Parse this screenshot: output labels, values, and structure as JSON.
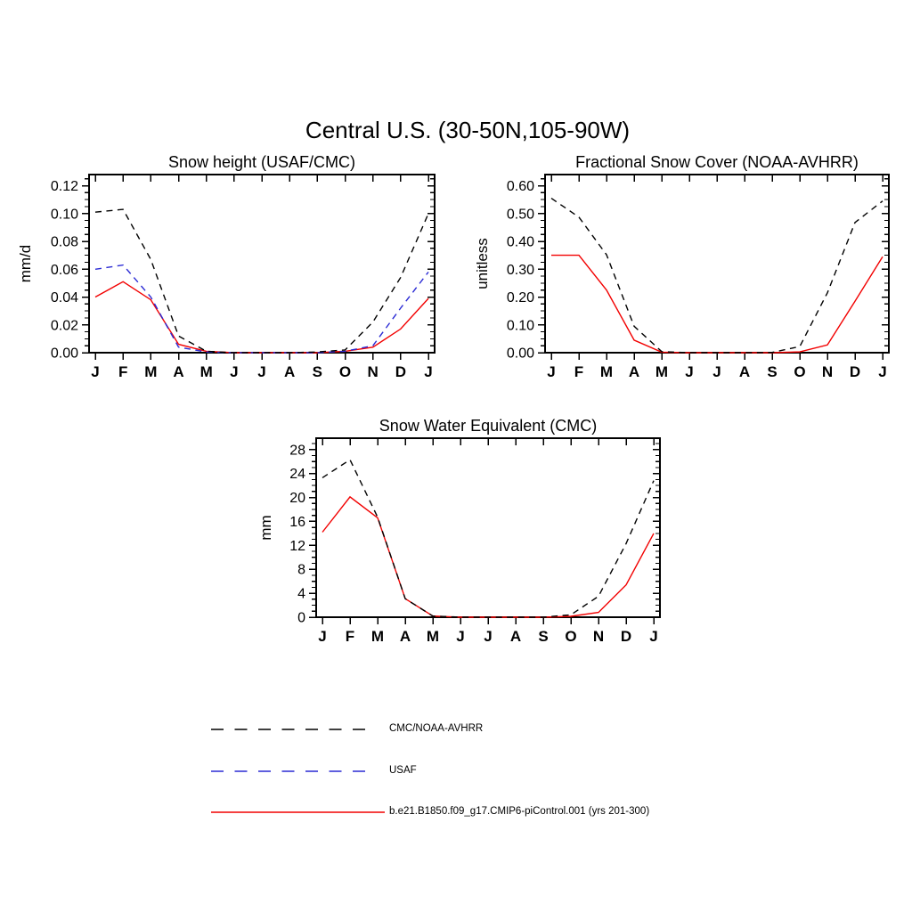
{
  "title": "Central U.S. (30-50N,105-90W)",
  "colors": {
    "obs_black": "#000000",
    "usaf_blue": "#2a2ad4",
    "model_red": "#f20000",
    "axis": "#000000"
  },
  "months": [
    "J",
    "F",
    "M",
    "A",
    "M",
    "J",
    "J",
    "A",
    "S",
    "O",
    "N",
    "D",
    "J"
  ],
  "chart_data": [
    {
      "id": "snow-height",
      "type": "line",
      "title": "Snow height (USAF/CMC)",
      "ylabel": "mm/d",
      "xlabel": "",
      "categories": [
        "J",
        "F",
        "M",
        "A",
        "M",
        "J",
        "J",
        "A",
        "S",
        "O",
        "N",
        "D",
        "J"
      ],
      "ylim": [
        0,
        0.128
      ],
      "y_ticks": [
        0.0,
        0.02,
        0.04,
        0.06,
        0.08,
        0.1,
        0.12
      ],
      "y_tick_labels": [
        "0.00",
        "0.02",
        "0.04",
        "0.06",
        "0.08",
        "0.10",
        "0.12"
      ],
      "y_minor_step": 0.005,
      "grid": false,
      "series": [
        {
          "id": "model",
          "name": "b.e21.B1850.f09_g17.CMIP6-piControl.001 (yrs 201-300)",
          "color": "#f20000",
          "line_style": "solid",
          "values": [
            0.04,
            0.051,
            0.038,
            0.006,
            0.001,
            0.0,
            0.0,
            0.0,
            0.0,
            0.001,
            0.004,
            0.017,
            0.039
          ]
        },
        {
          "id": "usaf",
          "name": "USAF",
          "color": "#2a2ad4",
          "line_style": "dashed",
          "values": [
            0.06,
            0.063,
            0.04,
            0.004,
            0.0005,
            0.0,
            0.0,
            0.0,
            0.0,
            0.001,
            0.005,
            0.032,
            0.058
          ]
        },
        {
          "id": "cmc_noaa_avhrr",
          "name": "CMC/NOAA-AVHRR",
          "color": "#000000",
          "line_style": "dashed",
          "values": [
            0.101,
            0.103,
            0.067,
            0.012,
            0.001,
            0.0,
            0.0,
            0.0,
            0.0005,
            0.002,
            0.022,
            0.054,
            0.1
          ]
        }
      ]
    },
    {
      "id": "fractional-snow-cover",
      "type": "line",
      "title": "Fractional Snow Cover (NOAA-AVHRR)",
      "ylabel": "unitless",
      "xlabel": "",
      "categories": [
        "J",
        "F",
        "M",
        "A",
        "M",
        "J",
        "J",
        "A",
        "S",
        "O",
        "N",
        "D",
        "J"
      ],
      "ylim": [
        0,
        0.64
      ],
      "y_ticks": [
        0.0,
        0.1,
        0.2,
        0.3,
        0.4,
        0.5,
        0.6
      ],
      "y_tick_labels": [
        "0.00",
        "0.10",
        "0.20",
        "0.30",
        "0.40",
        "0.50",
        "0.60"
      ],
      "y_minor_step": 0.025,
      "grid": false,
      "series": [
        {
          "id": "model",
          "name": "b.e21.B1850.f09_g17.CMIP6-piControl.001 (yrs 201-300)",
          "color": "#f20000",
          "line_style": "solid",
          "values": [
            0.35,
            0.35,
            0.225,
            0.045,
            0.002,
            0.0,
            0.0,
            0.0,
            0.0,
            0.003,
            0.028,
            0.185,
            0.345
          ]
        },
        {
          "id": "cmc_noaa_avhrr",
          "name": "CMC/NOAA-AVHRR",
          "color": "#000000",
          "line_style": "dashed",
          "values": [
            0.555,
            0.487,
            0.352,
            0.095,
            0.004,
            0.0,
            0.0,
            0.0,
            0.001,
            0.022,
            0.215,
            0.468,
            0.545
          ]
        }
      ]
    },
    {
      "id": "snow-water-equivalent",
      "type": "line",
      "title": "Snow Water Equivalent (CMC)",
      "ylabel": "mm",
      "xlabel": "",
      "categories": [
        "J",
        "F",
        "M",
        "A",
        "M",
        "J",
        "J",
        "A",
        "S",
        "O",
        "N",
        "D",
        "J"
      ],
      "ylim": [
        0,
        29.9
      ],
      "y_ticks": [
        0,
        4,
        8,
        12,
        16,
        20,
        24,
        28
      ],
      "y_tick_labels": [
        "0",
        "4",
        "8",
        "12",
        "16",
        "20",
        "24",
        "28"
      ],
      "y_minor_step": 1,
      "grid": false,
      "series": [
        {
          "id": "model",
          "name": "b.e21.B1850.f09_g17.CMIP6-piControl.001 (yrs 201-300)",
          "color": "#f20000",
          "line_style": "solid",
          "values": [
            14.2,
            20.1,
            16.6,
            3.1,
            0.2,
            0.0,
            0.0,
            0.0,
            0.0,
            0.15,
            0.8,
            5.4,
            14.0
          ]
        },
        {
          "id": "cmc_noaa_avhrr",
          "name": "CMC/NOAA-AVHRR",
          "color": "#000000",
          "line_style": "dashed",
          "values": [
            23.3,
            26.3,
            16.7,
            3.1,
            0.2,
            0.0,
            0.0,
            0.0,
            0.0,
            0.4,
            3.5,
            12.3,
            22.8
          ]
        }
      ]
    }
  ],
  "legend": {
    "entries": [
      {
        "id": "cmc_noaa_avhrr",
        "label": "CMC/NOAA-AVHRR",
        "color": "#000000",
        "line_style": "dashed"
      },
      {
        "id": "usaf",
        "label": "USAF",
        "color": "#2a2ad4",
        "line_style": "dashed"
      },
      {
        "id": "model",
        "label": "b.e21.B1850.f09_g17.CMIP6-piControl.001 (yrs 201-300)",
        "color": "#f20000",
        "line_style": "solid"
      }
    ]
  }
}
